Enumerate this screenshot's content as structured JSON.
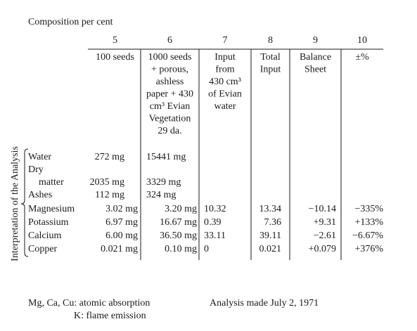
{
  "title": "Composition per cent",
  "table": {
    "columns": [
      {
        "number": "5",
        "header": [
          "100 seeds"
        ]
      },
      {
        "number": "6",
        "header": [
          "1000 seeds",
          "+ porous,",
          "ashless",
          "paper + 430",
          "cm³ Evian",
          "Vegetation",
          "29 da."
        ]
      },
      {
        "number": "7",
        "header": [
          "Input",
          "from",
          "430 cm³",
          "of Evian",
          "water"
        ]
      },
      {
        "number": "8",
        "header": [
          "Total",
          "Input"
        ]
      },
      {
        "number": "9",
        "header": [
          "Balance",
          "Sheet"
        ]
      },
      {
        "number": "10",
        "header": [
          "±%"
        ]
      }
    ],
    "side_label": "Interpretation of the Analysis",
    "rows": [
      {
        "label": [
          "Water"
        ],
        "cells": [
          "272 mg",
          "15441 mg"
        ]
      },
      {
        "label": [
          "Dry",
          "matter"
        ],
        "cells": [
          "2035 mg",
          "3329 mg"
        ]
      },
      {
        "label": [
          "Ashes"
        ],
        "cells": [
          "112 mg",
          "324 mg"
        ]
      },
      {
        "label": [
          "Magnesium"
        ],
        "cells": [
          "3.02 mg",
          "3.20 mg",
          "10.32",
          "13.34",
          "−10.14",
          "−335%"
        ]
      },
      {
        "label": [
          "Potassium"
        ],
        "cells": [
          "6.97 mg",
          "16.67 mg",
          "0.39",
          "7.36",
          "+9.31",
          "+133%"
        ]
      },
      {
        "label": [
          "Calcium"
        ],
        "cells": [
          "6.00 mg",
          "36.50 mg",
          "33.11",
          "39.11",
          "−2.61",
          "−6.67%"
        ]
      },
      {
        "label": [
          "Copper"
        ],
        "cells": [
          "0.021 mg",
          "0.10 mg",
          "0",
          "0.021",
          "+0.079",
          "+376%"
        ]
      }
    ]
  },
  "notes": {
    "methods": [
      "Mg, Ca, Cu: atomic absorption",
      "K: flame emission"
    ],
    "date": "Analysis made July 2, 1971"
  }
}
